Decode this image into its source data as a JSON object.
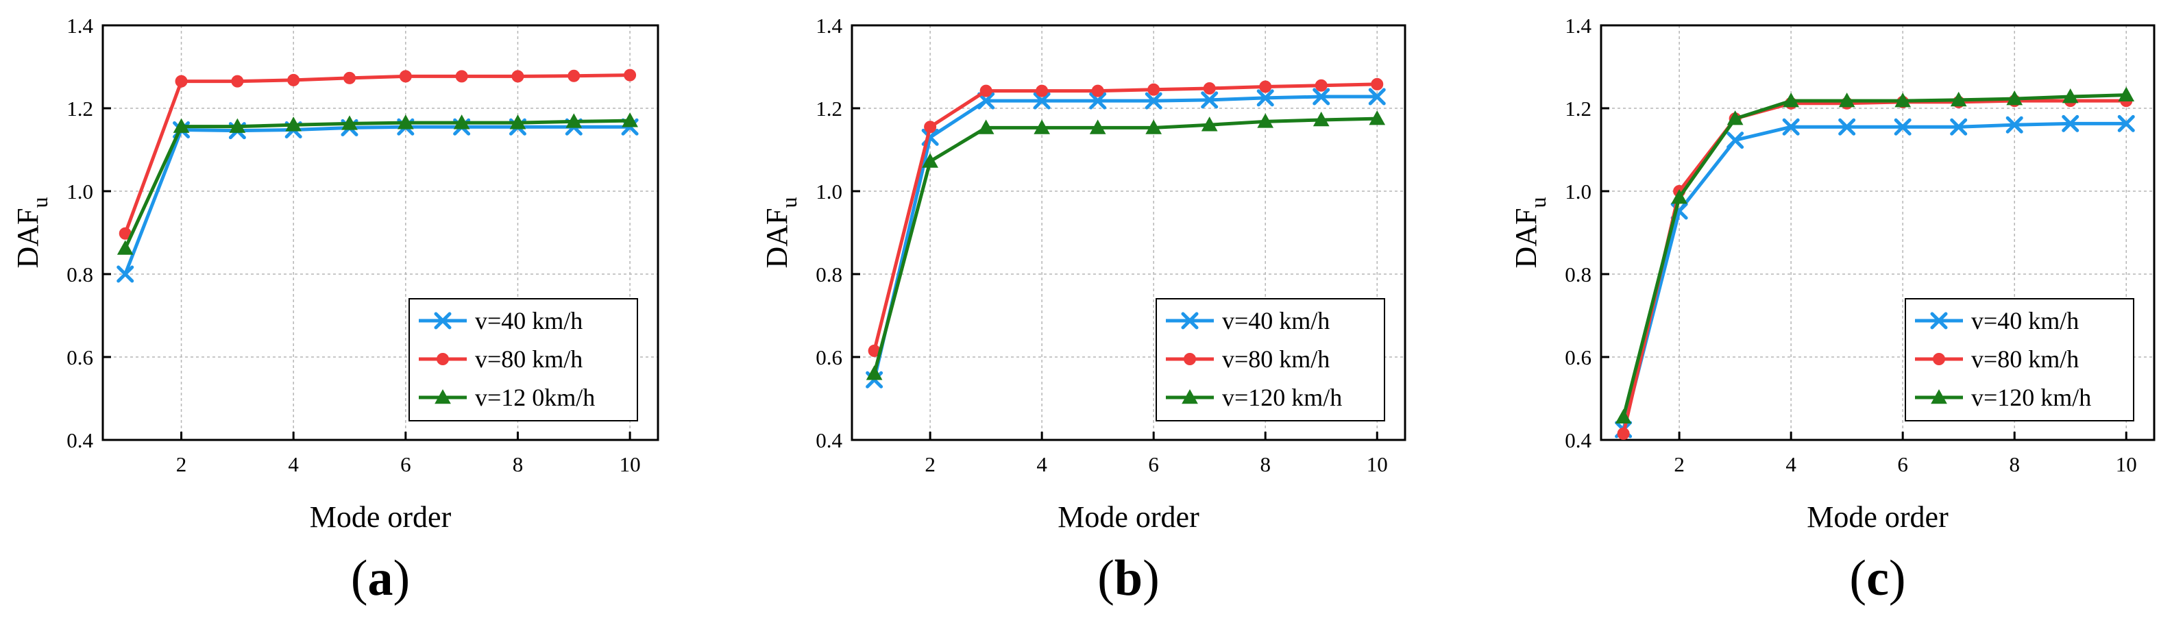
{
  "colors": {
    "s40": "#1e96ea",
    "s80": "#ef3b3b",
    "s120": "#1a7d1a"
  },
  "chart_data": [
    {
      "panel": "(a)",
      "type": "line",
      "xlabel": "Mode order",
      "ylabel": "DAF",
      "ylabel_sub": "u",
      "xlim": [
        0.6,
        10.5
      ],
      "ylim": [
        0.4,
        1.4
      ],
      "xticks": [
        "2",
        "4",
        "6",
        "8",
        "10"
      ],
      "yticks": [
        "0.4",
        "0.6",
        "0.8",
        "1.0",
        "1.2",
        "1.4"
      ],
      "legend_position": "bottom-right",
      "x": [
        1,
        2,
        3,
        4,
        5,
        6,
        7,
        8,
        9,
        10
      ],
      "series": [
        {
          "name": "v=40 km/h",
          "marker": "x",
          "values": [
            0.8,
            1.148,
            1.146,
            1.148,
            1.153,
            1.155,
            1.155,
            1.155,
            1.155,
            1.155
          ]
        },
        {
          "name": "v=80 km/h",
          "marker": "circle",
          "values": [
            0.898,
            1.265,
            1.265,
            1.268,
            1.273,
            1.277,
            1.277,
            1.277,
            1.278,
            1.28
          ]
        },
        {
          "name": "v=12 0km/h",
          "marker": "triangle",
          "values": [
            0.862,
            1.156,
            1.156,
            1.16,
            1.163,
            1.165,
            1.165,
            1.165,
            1.168,
            1.17
          ]
        }
      ]
    },
    {
      "panel": "(b)",
      "type": "line",
      "xlabel": "Mode order",
      "ylabel": "DAF",
      "ylabel_sub": "u",
      "xlim": [
        0.6,
        10.5
      ],
      "ylim": [
        0.4,
        1.4
      ],
      "xticks": [
        "2",
        "4",
        "6",
        "8",
        "10"
      ],
      "yticks": [
        "0.4",
        "0.6",
        "0.8",
        "1.0",
        "1.2",
        "1.4"
      ],
      "legend_position": "bottom-right",
      "x": [
        1,
        2,
        3,
        4,
        5,
        6,
        7,
        8,
        9,
        10
      ],
      "series": [
        {
          "name": "v=40 km/h",
          "marker": "x",
          "values": [
            0.545,
            1.13,
            1.218,
            1.218,
            1.218,
            1.218,
            1.22,
            1.225,
            1.228,
            1.228
          ]
        },
        {
          "name": "v=80 km/h",
          "marker": "circle",
          "values": [
            0.615,
            1.155,
            1.242,
            1.242,
            1.242,
            1.245,
            1.248,
            1.252,
            1.255,
            1.258
          ]
        },
        {
          "name": "v=120 km/h",
          "marker": "triangle",
          "values": [
            0.56,
            1.072,
            1.153,
            1.153,
            1.153,
            1.153,
            1.16,
            1.168,
            1.172,
            1.175
          ]
        }
      ]
    },
    {
      "panel": "(c)",
      "type": "line",
      "xlabel": "Mode order",
      "ylabel": "DAF",
      "ylabel_sub": "u",
      "xlim": [
        0.6,
        10.5
      ],
      "ylim": [
        0.4,
        1.4
      ],
      "xticks": [
        "2",
        "4",
        "6",
        "8",
        "10"
      ],
      "yticks": [
        "0.4",
        "0.6",
        "0.8",
        "1.0",
        "1.2",
        "1.4"
      ],
      "legend_position": "bottom-right",
      "x": [
        1,
        2,
        3,
        4,
        5,
        6,
        7,
        8,
        9,
        10
      ],
      "series": [
        {
          "name": "v=40 km/h",
          "marker": "x",
          "values": [
            0.425,
            0.952,
            1.123,
            1.155,
            1.155,
            1.155,
            1.155,
            1.16,
            1.163,
            1.163
          ]
        },
        {
          "name": "v=80 km/h",
          "marker": "circle",
          "values": [
            0.415,
            1.0,
            1.175,
            1.212,
            1.212,
            1.215,
            1.215,
            1.218,
            1.218,
            1.218
          ]
        },
        {
          "name": "v=120 km/h",
          "marker": "triangle",
          "values": [
            0.455,
            0.985,
            1.175,
            1.218,
            1.218,
            1.218,
            1.22,
            1.223,
            1.228,
            1.232
          ]
        }
      ]
    }
  ]
}
